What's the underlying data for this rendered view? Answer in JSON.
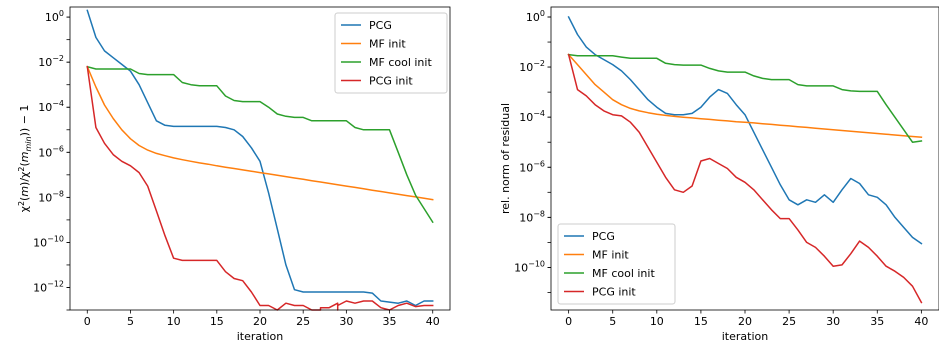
{
  "chart_data": [
    {
      "type": "line",
      "xlabel": "iteration",
      "ylabel": "χ²(m)/χ²(m_min) − 1",
      "yscale": "log",
      "xlim": [
        -2.0,
        42.0
      ],
      "ylim_log10": [
        -13.0,
        0.45
      ],
      "xticks": [
        0,
        5,
        10,
        15,
        20,
        25,
        30,
        35,
        40
      ],
      "yticks_log10": [
        0,
        -2,
        -4,
        -6,
        -8,
        -10,
        -12
      ],
      "grid": false,
      "legend": "top-right",
      "series": [
        {
          "name": "PCG",
          "color": "#1f77b4",
          "x": [
            0,
            1,
            2,
            3,
            4,
            5,
            6,
            7,
            8,
            9,
            10,
            11,
            12,
            13,
            14,
            15,
            16,
            17,
            18,
            19,
            20,
            21,
            22,
            23,
            24,
            25,
            26,
            27,
            28,
            29,
            30,
            31,
            32,
            33,
            34,
            35,
            36,
            37,
            38,
            39,
            40
          ],
          "log10_y": [
            0.3,
            -0.9,
            -1.5,
            -1.8,
            -2.1,
            -2.4,
            -3.0,
            -3.8,
            -4.6,
            -4.8,
            -4.85,
            -4.85,
            -4.85,
            -4.85,
            -4.85,
            -4.85,
            -4.9,
            -5.0,
            -5.3,
            -5.8,
            -6.4,
            -7.8,
            -9.4,
            -11.0,
            -12.1,
            -12.2,
            -12.2,
            -12.2,
            -12.2,
            -12.2,
            -12.2,
            -12.2,
            -12.2,
            -12.25,
            -12.6,
            -12.65,
            -12.7,
            -12.6,
            -12.8,
            -12.6,
            -12.6
          ]
        },
        {
          "name": "MF init",
          "color": "#ff7f0e",
          "x": [
            0,
            1,
            2,
            3,
            4,
            5,
            6,
            7,
            8,
            9,
            10,
            11,
            12,
            13,
            14,
            15,
            16,
            17,
            18,
            19,
            20,
            21,
            22,
            23,
            24,
            25,
            26,
            27,
            28,
            29,
            30,
            31,
            32,
            33,
            34,
            35,
            36,
            37,
            38,
            39,
            40
          ],
          "log10_y": [
            -2.2,
            -3.1,
            -3.9,
            -4.5,
            -5.0,
            -5.4,
            -5.7,
            -5.9,
            -6.05,
            -6.15,
            -6.25,
            -6.33,
            -6.4,
            -6.47,
            -6.53,
            -6.6,
            -6.66,
            -6.72,
            -6.78,
            -6.84,
            -6.9,
            -6.96,
            -7.02,
            -7.08,
            -7.14,
            -7.2,
            -7.26,
            -7.32,
            -7.38,
            -7.44,
            -7.5,
            -7.56,
            -7.62,
            -7.68,
            -7.74,
            -7.8,
            -7.86,
            -7.92,
            -7.98,
            -8.04,
            -8.1
          ]
        },
        {
          "name": "MF cool init",
          "color": "#2ca02c",
          "x": [
            0,
            1,
            2,
            3,
            4,
            5,
            6,
            7,
            8,
            9,
            10,
            11,
            12,
            13,
            14,
            15,
            16,
            17,
            18,
            19,
            20,
            21,
            22,
            23,
            24,
            25,
            26,
            27,
            28,
            29,
            30,
            31,
            32,
            33,
            34,
            35,
            36,
            37,
            38,
            39,
            40
          ],
          "log10_y": [
            -2.2,
            -2.3,
            -2.3,
            -2.3,
            -2.3,
            -2.3,
            -2.5,
            -2.55,
            -2.55,
            -2.55,
            -2.55,
            -2.9,
            -3.0,
            -3.05,
            -3.05,
            -3.05,
            -3.5,
            -3.7,
            -3.75,
            -3.75,
            -3.75,
            -4.0,
            -4.3,
            -4.4,
            -4.45,
            -4.45,
            -4.6,
            -4.6,
            -4.6,
            -4.6,
            -4.6,
            -4.9,
            -5.0,
            -5.0,
            -5.0,
            -5.0,
            -6.0,
            -7.0,
            -7.9,
            -8.5,
            -9.1
          ]
        },
        {
          "name": "PCG init",
          "color": "#d62728",
          "x": [
            0,
            1,
            2,
            3,
            4,
            5,
            6,
            7,
            8,
            9,
            10,
            11,
            12,
            13,
            14,
            15,
            16,
            17,
            18,
            19,
            20,
            21,
            22,
            23,
            24,
            25,
            26,
            27,
            27,
            27,
            28,
            29,
            29,
            29,
            30,
            31,
            32,
            33,
            34,
            35,
            36,
            37,
            38,
            39,
            40
          ],
          "log10_y": [
            -2.2,
            -4.9,
            -5.6,
            -6.1,
            -6.4,
            -6.6,
            -6.9,
            -7.5,
            -8.6,
            -9.7,
            -10.7,
            -10.8,
            -10.8,
            -10.8,
            -10.8,
            -10.8,
            -11.3,
            -11.6,
            -11.7,
            -12.2,
            -12.8,
            -12.8,
            -13.0,
            -12.7,
            -12.8,
            -12.8,
            -13.0,
            -13.0,
            -13.2,
            -12.9,
            -12.9,
            -12.7,
            -13.2,
            -12.8,
            -12.6,
            -12.7,
            -12.6,
            -12.6,
            -12.9,
            -13.0,
            -12.8,
            -12.7,
            -12.85,
            -12.8,
            -12.8
          ]
        }
      ]
    },
    {
      "type": "line",
      "xlabel": "iteration",
      "ylabel": "rel. norm of residual",
      "yscale": "log",
      "xlim": [
        -2.0,
        42.0
      ],
      "ylim_log10": [
        -11.7,
        0.4
      ],
      "xticks": [
        0,
        5,
        10,
        15,
        20,
        25,
        30,
        35,
        40
      ],
      "yticks_log10": [
        0,
        -2,
        -4,
        -6,
        -8,
        -10
      ],
      "grid": false,
      "legend": "bottom-left",
      "series": [
        {
          "name": "PCG",
          "color": "#1f77b4",
          "x": [
            0,
            1,
            2,
            3,
            4,
            5,
            6,
            7,
            8,
            9,
            10,
            11,
            12,
            13,
            14,
            15,
            16,
            17,
            18,
            19,
            20,
            21,
            22,
            23,
            24,
            25,
            26,
            27,
            28,
            29,
            30,
            31,
            32,
            33,
            34,
            35,
            36,
            37,
            38,
            39,
            40
          ],
          "log10_y": [
            0.0,
            -0.7,
            -1.2,
            -1.5,
            -1.7,
            -1.9,
            -2.15,
            -2.5,
            -2.9,
            -3.3,
            -3.6,
            -3.85,
            -3.9,
            -3.9,
            -3.85,
            -3.6,
            -3.2,
            -2.9,
            -3.05,
            -3.5,
            -3.9,
            -4.6,
            -5.3,
            -6.0,
            -6.7,
            -7.3,
            -7.5,
            -7.3,
            -7.4,
            -7.1,
            -7.4,
            -6.9,
            -6.45,
            -6.65,
            -7.1,
            -7.2,
            -7.5,
            -8.0,
            -8.4,
            -8.8,
            -9.05
          ]
        },
        {
          "name": "MF init",
          "color": "#ff7f0e",
          "x": [
            0,
            1,
            2,
            3,
            4,
            5,
            6,
            7,
            8,
            9,
            10,
            11,
            12,
            13,
            14,
            15,
            16,
            17,
            18,
            19,
            20,
            21,
            22,
            23,
            24,
            25,
            26,
            27,
            28,
            29,
            30,
            31,
            32,
            33,
            34,
            35,
            36,
            37,
            38,
            39,
            40
          ],
          "log10_y": [
            -1.5,
            -1.9,
            -2.3,
            -2.7,
            -3.0,
            -3.3,
            -3.5,
            -3.65,
            -3.75,
            -3.82,
            -3.88,
            -3.93,
            -3.97,
            -4.0,
            -4.03,
            -4.06,
            -4.09,
            -4.12,
            -4.15,
            -4.18,
            -4.2,
            -4.23,
            -4.26,
            -4.29,
            -4.32,
            -4.35,
            -4.38,
            -4.41,
            -4.44,
            -4.47,
            -4.5,
            -4.53,
            -4.56,
            -4.59,
            -4.62,
            -4.65,
            -4.68,
            -4.71,
            -4.74,
            -4.77,
            -4.8
          ]
        },
        {
          "name": "MF cool init",
          "color": "#2ca02c",
          "x": [
            0,
            1,
            2,
            3,
            4,
            5,
            6,
            7,
            8,
            9,
            10,
            11,
            12,
            13,
            14,
            15,
            16,
            17,
            18,
            19,
            20,
            21,
            22,
            23,
            24,
            25,
            26,
            27,
            28,
            29,
            30,
            31,
            32,
            33,
            34,
            35,
            36,
            37,
            38,
            39,
            40
          ],
          "log10_y": [
            -1.5,
            -1.55,
            -1.55,
            -1.55,
            -1.55,
            -1.55,
            -1.6,
            -1.65,
            -1.65,
            -1.65,
            -1.65,
            -1.85,
            -1.9,
            -1.92,
            -1.92,
            -1.92,
            -2.05,
            -2.15,
            -2.2,
            -2.2,
            -2.2,
            -2.35,
            -2.45,
            -2.5,
            -2.5,
            -2.5,
            -2.7,
            -2.75,
            -2.75,
            -2.75,
            -2.75,
            -2.9,
            -2.95,
            -2.97,
            -2.97,
            -2.97,
            -3.5,
            -4.0,
            -4.5,
            -5.0,
            -4.95
          ]
        },
        {
          "name": "PCG init",
          "color": "#d62728",
          "x": [
            0,
            1,
            2,
            3,
            4,
            5,
            6,
            7,
            8,
            9,
            10,
            11,
            12,
            13,
            14,
            15,
            16,
            17,
            18,
            19,
            20,
            21,
            22,
            23,
            24,
            25,
            26,
            27,
            28,
            29,
            30,
            31,
            32,
            33,
            34,
            35,
            36,
            37,
            38,
            39,
            40
          ],
          "log10_y": [
            -1.5,
            -2.9,
            -3.15,
            -3.5,
            -3.75,
            -3.9,
            -3.95,
            -4.2,
            -4.6,
            -5.2,
            -5.8,
            -6.4,
            -6.9,
            -7.0,
            -6.75,
            -5.75,
            -5.65,
            -5.85,
            -6.05,
            -6.4,
            -6.6,
            -6.9,
            -7.3,
            -7.7,
            -8.05,
            -8.05,
            -8.5,
            -9.0,
            -9.2,
            -9.55,
            -9.95,
            -9.9,
            -9.45,
            -8.95,
            -9.2,
            -9.55,
            -9.95,
            -10.15,
            -10.4,
            -10.75,
            -11.4
          ]
        }
      ]
    }
  ]
}
